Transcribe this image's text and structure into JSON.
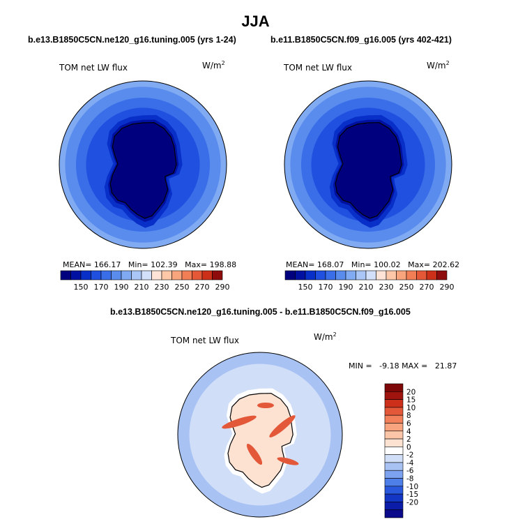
{
  "figure": {
    "season": "JJA",
    "left_case": "b.e13.B1850C5CN.ne120_g16.tuning.005 (yrs 1-24)",
    "right_case": "b.e11.B1850C5CN.f09_g16.005 (yrs 402-421)",
    "diff_case": "b.e13.B1850C5CN.ne120_g16.tuning.005 - b.e11.B1850C5CN.f09_g16.005"
  },
  "colors": {
    "abs_scale": [
      "#00007f",
      "#0010a0",
      "#0830c8",
      "#2050e0",
      "#3a6ee8",
      "#5a8cee",
      "#80aaf2",
      "#aac6f6",
      "#d2e0fa",
      "#fde4d6",
      "#fcc8a8",
      "#f8a47c",
      "#f27e56",
      "#e45838",
      "#cc3018",
      "#8e0c0c"
    ],
    "diff_scale": [
      "#0a0a8a",
      "#0a1ca8",
      "#1436c4",
      "#2a58dc",
      "#4e7ee8",
      "#7ca2f0",
      "#a8c2f4",
      "#d0def8",
      "#ffffff",
      "#fde2d2",
      "#fbc6a8",
      "#f8a47e",
      "#f2805a",
      "#e4583a",
      "#cc301a",
      "#a01410",
      "#7e0808"
    ]
  },
  "chart_data": [
    {
      "type": "polar-contour-map",
      "name": "left",
      "label": "TOM net LW flux",
      "units": "W/m",
      "units_exp": "2",
      "stats": {
        "mean": "MEAN= 166.17",
        "min": "Min= 102.39",
        "max": "Max= 198.88"
      },
      "colorbar_labels": [
        "150",
        "170",
        "190",
        "210",
        "230",
        "250",
        "270",
        "290"
      ],
      "colorbar_levels": [
        140,
        145,
        150,
        160,
        170,
        180,
        190,
        200,
        210,
        220,
        230,
        240,
        250,
        260,
        270,
        280,
        290
      ]
    },
    {
      "type": "polar-contour-map",
      "name": "right",
      "label": "TOM net LW flux",
      "units": "W/m",
      "units_exp": "2",
      "stats": {
        "mean": "MEAN= 168.07",
        "min": "Min= 100.02",
        "max": "Max= 202.62"
      },
      "colorbar_labels": [
        "150",
        "170",
        "190",
        "210",
        "230",
        "250",
        "270",
        "290"
      ],
      "colorbar_levels": [
        140,
        145,
        150,
        160,
        170,
        180,
        190,
        200,
        210,
        220,
        230,
        240,
        250,
        260,
        270,
        280,
        290
      ]
    },
    {
      "type": "polar-contour-map",
      "name": "difference",
      "label": "TOM net LW flux",
      "units": "W/m",
      "units_exp": "2",
      "stats": {
        "minmax": "MIN =   -9.18 MAX =   21.87"
      },
      "colorbar_labels": [
        "20",
        "15",
        "10",
        "8",
        "6",
        "4",
        "2",
        "0",
        "-2",
        "-4",
        "-6",
        "-8",
        "-10",
        "-15",
        "-20"
      ]
    }
  ]
}
